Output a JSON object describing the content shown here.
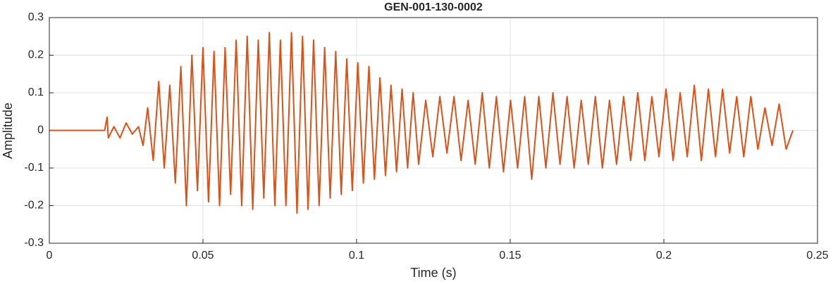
{
  "chart_data": {
    "type": "line",
    "title": "GEN-001-130-0002",
    "xlabel": "Time (s)",
    "ylabel": "Amplitude",
    "color": "#d95319",
    "grid": true,
    "xlim": [
      0,
      0.25
    ],
    "xticks": [
      0,
      0.05,
      0.1,
      0.15,
      0.2,
      0.25
    ],
    "ylim": [
      -0.3,
      0.3
    ],
    "yticks": [
      -0.3,
      -0.2,
      -0.1,
      0,
      0.1,
      0.2,
      0.3
    ],
    "x": [
      0,
      0.005,
      0.01,
      0.015,
      0.018,
      0.0188,
      0.0192,
      0.021,
      0.023,
      0.025,
      0.027,
      0.029,
      0.0305,
      0.032,
      0.0338,
      0.0356,
      0.0374,
      0.0392,
      0.041,
      0.0428,
      0.0446,
      0.0464,
      0.0482,
      0.05,
      0.0518,
      0.0536,
      0.0554,
      0.0572,
      0.059,
      0.0608,
      0.0626,
      0.0644,
      0.0662,
      0.068,
      0.0698,
      0.0716,
      0.0734,
      0.0752,
      0.077,
      0.0788,
      0.0806,
      0.0824,
      0.0842,
      0.086,
      0.0878,
      0.0896,
      0.0914,
      0.0932,
      0.095,
      0.0968,
      0.0986,
      0.1004,
      0.1022,
      0.104,
      0.1058,
      0.1076,
      0.1094,
      0.1112,
      0.113,
      0.1148,
      0.1166,
      0.1184,
      0.1202,
      0.1225,
      0.1248,
      0.1271,
      0.1294,
      0.1317,
      0.134,
      0.1363,
      0.1386,
      0.1409,
      0.1432,
      0.1455,
      0.1478,
      0.1501,
      0.1524,
      0.1547,
      0.157,
      0.1593,
      0.1616,
      0.1639,
      0.1662,
      0.1685,
      0.1708,
      0.1731,
      0.1754,
      0.1777,
      0.18,
      0.1823,
      0.1846,
      0.1869,
      0.1892,
      0.1915,
      0.1938,
      0.1961,
      0.1984,
      0.2007,
      0.203,
      0.2053,
      0.2076,
      0.2099,
      0.2122,
      0.2145,
      0.2168,
      0.2191,
      0.2214,
      0.2237,
      0.226,
      0.2283,
      0.2306,
      0.2329,
      0.2352,
      0.2375,
      0.2398,
      0.242
    ],
    "values": [
      0,
      0,
      0,
      0,
      0,
      0.035,
      -0.02,
      0.01,
      -0.02,
      0.02,
      -0.01,
      0.01,
      -0.04,
      0.06,
      -0.08,
      0.13,
      -0.1,
      0.12,
      -0.14,
      0.17,
      -0.2,
      0.2,
      -0.16,
      0.22,
      -0.19,
      0.21,
      -0.2,
      0.22,
      -0.17,
      0.24,
      -0.2,
      0.25,
      -0.21,
      0.24,
      -0.18,
      0.26,
      -0.2,
      0.24,
      -0.2,
      0.26,
      -0.22,
      0.25,
      -0.21,
      0.24,
      -0.2,
      0.22,
      -0.18,
      0.21,
      -0.17,
      0.19,
      -0.16,
      0.18,
      -0.14,
      0.17,
      -0.13,
      0.14,
      -0.12,
      0.12,
      -0.11,
      0.11,
      -0.1,
      0.1,
      -0.09,
      0.08,
      -0.07,
      0.09,
      -0.06,
      0.09,
      -0.08,
      0.08,
      -0.09,
      0.1,
      -0.1,
      0.09,
      -0.11,
      0.08,
      -0.1,
      0.09,
      -0.13,
      0.09,
      -0.1,
      0.1,
      -0.09,
      0.09,
      -0.1,
      0.08,
      -0.09,
      0.09,
      -0.1,
      0.08,
      -0.09,
      0.09,
      -0.08,
      0.1,
      -0.08,
      0.09,
      -0.07,
      0.11,
      -0.08,
      0.1,
      -0.07,
      0.12,
      -0.08,
      0.11,
      -0.07,
      0.11,
      -0.06,
      0.09,
      -0.07,
      0.09,
      -0.05,
      0.06,
      -0.04,
      0.07,
      -0.05,
      0
    ]
  }
}
